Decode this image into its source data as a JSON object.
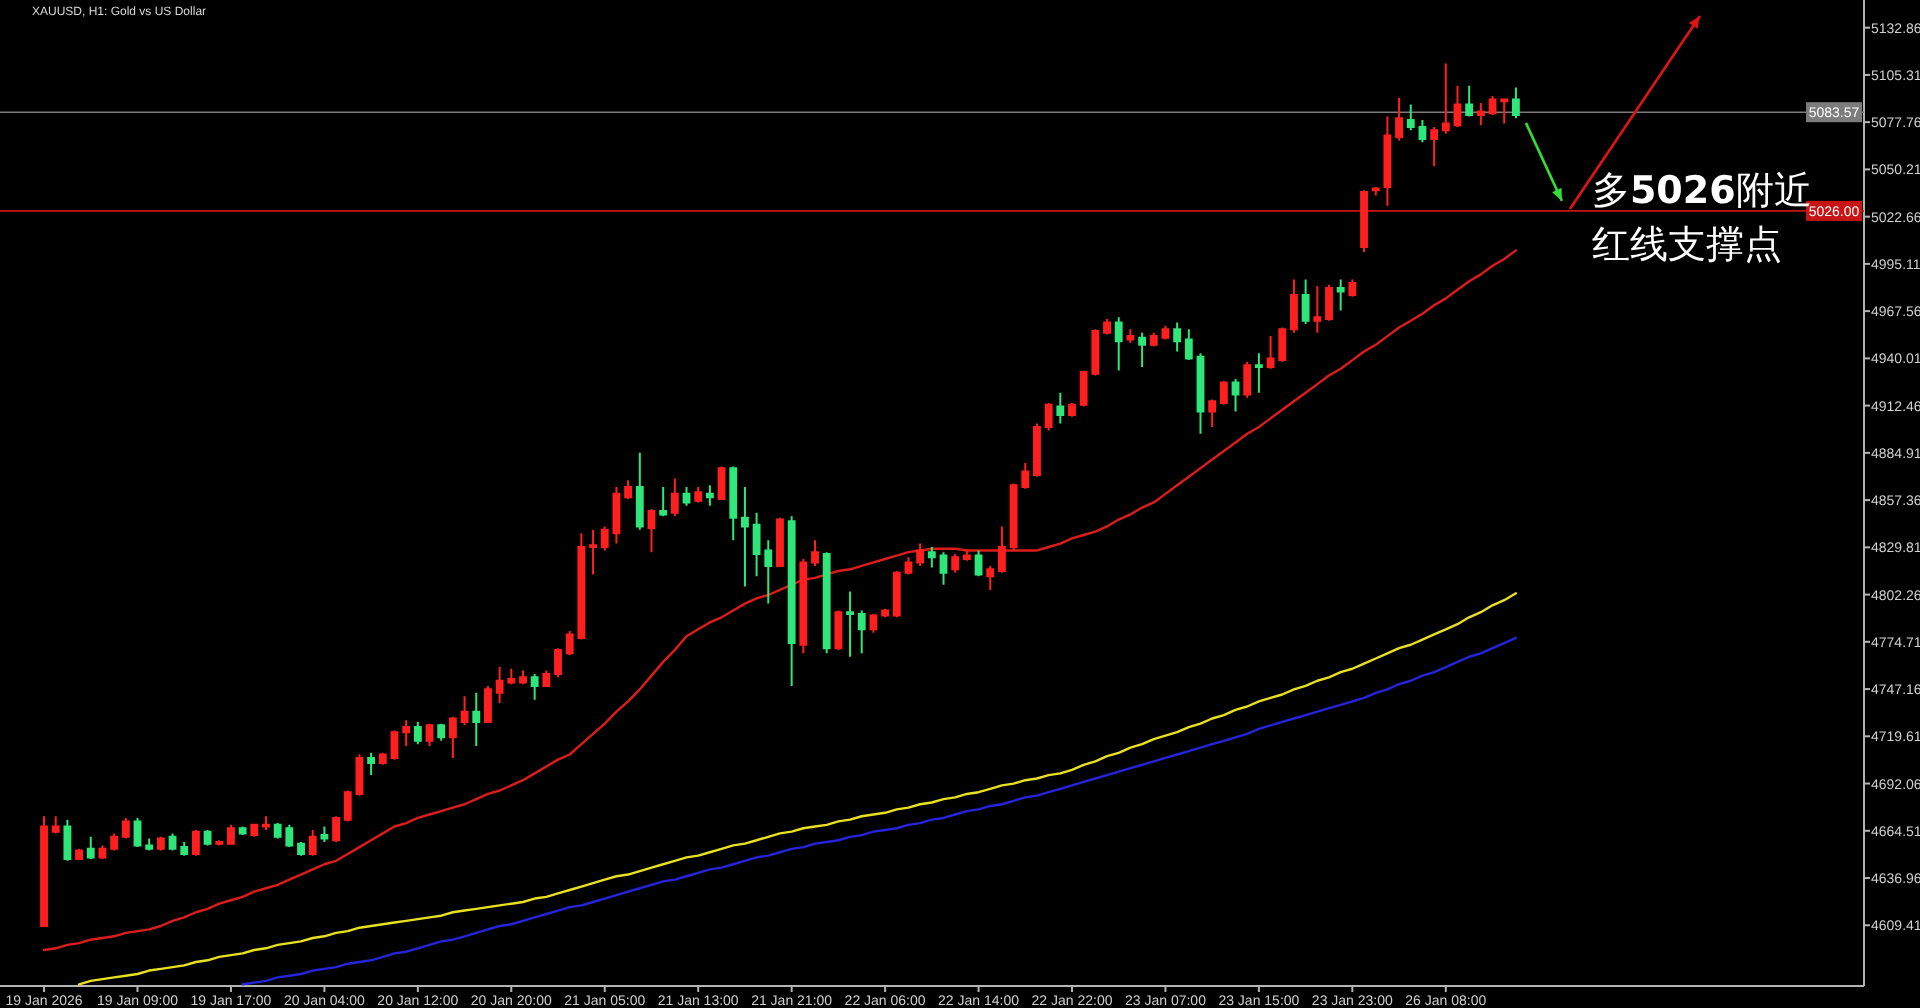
{
  "chart_data": {
    "type": "candlestick",
    "title": "XAUUSD, H1: Gold vs US Dollar",
    "categories": [
      "19 Jan 2026",
      null,
      null,
      null,
      null,
      null,
      null,
      null,
      "19 Jan 09:00",
      null,
      null,
      null,
      null,
      null,
      null,
      null,
      "19 Jan 17:00",
      null,
      null,
      null,
      null,
      null,
      null,
      null,
      "20 Jan 04:00",
      null,
      null,
      null,
      null,
      null,
      null,
      null,
      "20 Jan 12:00",
      null,
      null,
      null,
      null,
      null,
      null,
      null,
      "20 Jan 20:00",
      null,
      null,
      null,
      null,
      null,
      null,
      null,
      "21 Jan 05:00",
      null,
      null,
      null,
      null,
      null,
      null,
      null,
      "21 Jan 13:00",
      null,
      null,
      null,
      null,
      null,
      null,
      null,
      "21 Jan 21:00",
      null,
      null,
      null,
      null,
      null,
      null,
      null,
      "22 Jan 06:00",
      null,
      null,
      null,
      null,
      null,
      null,
      null,
      "22 Jan 14:00",
      null,
      null,
      null,
      null,
      null,
      null,
      null,
      "22 Jan 22:00",
      null,
      null,
      null,
      null,
      null,
      null,
      null,
      "23 Jan 07:00",
      null,
      null,
      null,
      null,
      null,
      null,
      null,
      "23 Jan 15:00",
      null,
      null,
      null,
      null,
      null,
      null,
      null,
      "23 Jan 23:00",
      null,
      null,
      null,
      null,
      null,
      null,
      null,
      "26 Jan 08:00",
      null,
      null,
      null,
      null,
      null,
      null
    ],
    "ohlc": [
      [
        4609,
        4673,
        4609,
        4667
      ],
      [
        4664,
        4673,
        4663,
        4667
      ],
      [
        4667,
        4671,
        4647,
        4648
      ],
      [
        4648,
        4654,
        4648,
        4653
      ],
      [
        4654,
        4661,
        4648,
        4649
      ],
      [
        4649,
        4656,
        4648,
        4654
      ],
      [
        4654,
        4663,
        4653,
        4661
      ],
      [
        4661,
        4672,
        4660,
        4670
      ],
      [
        4670,
        4672,
        4655,
        4656
      ],
      [
        4656,
        4660,
        4653,
        4654
      ],
      [
        4654,
        4661,
        4653,
        4660
      ],
      [
        4661,
        4663,
        4653,
        4654
      ],
      [
        4655,
        4658,
        4650,
        4651
      ],
      [
        4651,
        4665,
        4650,
        4664
      ],
      [
        4664,
        4665,
        4656,
        4657
      ],
      [
        4657,
        4659,
        4656,
        4658
      ],
      [
        4657,
        4668,
        4657,
        4666
      ],
      [
        4666,
        4667,
        4662,
        4663
      ],
      [
        4662,
        4668,
        4661,
        4668
      ],
      [
        4667,
        4673,
        4665,
        4668
      ],
      [
        4668,
        4669,
        4660,
        4661
      ],
      [
        4666,
        4668,
        4655,
        4656
      ],
      [
        4657,
        4658,
        4650,
        4651
      ],
      [
        4651,
        4665,
        4650,
        4661
      ],
      [
        4662,
        4667,
        4658,
        4660
      ],
      [
        4659,
        4673,
        4658,
        4672
      ],
      [
        4671,
        4688,
        4670,
        4687
      ],
      [
        4686,
        4709,
        4685,
        4707
      ],
      [
        4707,
        4710,
        4697,
        4704
      ],
      [
        4704,
        4710,
        4703,
        4709
      ],
      [
        4707,
        4723,
        4706,
        4722
      ],
      [
        4722,
        4729,
        4714,
        4725
      ],
      [
        4725,
        4728,
        4715,
        4717
      ],
      [
        4717,
        4727,
        4714,
        4726
      ],
      [
        4726,
        4727,
        4717,
        4719
      ],
      [
        4719,
        4731,
        4707,
        4730
      ],
      [
        4728,
        4743,
        4726,
        4734
      ],
      [
        4734,
        4745,
        4714,
        4728
      ],
      [
        4728,
        4749,
        4728,
        4747
      ],
      [
        4745,
        4760,
        4739,
        4752
      ],
      [
        4751,
        4759,
        4750,
        4753
      ],
      [
        4751,
        4758,
        4750,
        4754
      ],
      [
        4754,
        4756,
        4741,
        4749
      ],
      [
        4749,
        4758,
        4749,
        4756
      ],
      [
        4756,
        4771,
        4754,
        4770
      ],
      [
        4768,
        4781,
        4767,
        4779
      ],
      [
        4777,
        4838,
        4776,
        4830
      ],
      [
        4830,
        4840,
        4814,
        4831
      ],
      [
        4830,
        4842,
        4828,
        4840
      ],
      [
        4838,
        4865,
        4832,
        4861
      ],
      [
        4859,
        4869,
        4858,
        4865
      ],
      [
        4865,
        4885,
        4840,
        4842
      ],
      [
        4841,
        4852,
        4827,
        4851
      ],
      [
        4851,
        4865,
        4848,
        4849
      ],
      [
        4850,
        4870,
        4848,
        4861
      ],
      [
        4861,
        4865,
        4854,
        4856
      ],
      [
        4857,
        4865,
        4856,
        4862
      ],
      [
        4861,
        4866,
        4854,
        4859
      ],
      [
        4858,
        4877,
        4858,
        4876
      ],
      [
        4876,
        4877,
        4834,
        4847
      ],
      [
        4847,
        4865,
        4807,
        4842
      ],
      [
        4843,
        4850,
        4813,
        4826
      ],
      [
        4828,
        4834,
        4797,
        4819
      ],
      [
        4819,
        4847,
        4819,
        4846
      ],
      [
        4845,
        4848,
        4749,
        4774
      ],
      [
        4773,
        4823,
        4768,
        4821
      ],
      [
        4821,
        4834,
        4819,
        4827
      ],
      [
        4826,
        4827,
        4768,
        4771
      ],
      [
        4771,
        4793,
        4770,
        4792
      ],
      [
        4792,
        4804,
        4766,
        4791
      ],
      [
        4791,
        4793,
        4768,
        4782
      ],
      [
        4782,
        4791,
        4780,
        4790
      ],
      [
        4790,
        4794,
        4789,
        4793
      ],
      [
        4790,
        4816,
        4789,
        4815
      ],
      [
        4815,
        4824,
        4814,
        4821
      ],
      [
        4821,
        4832,
        4819,
        4828
      ],
      [
        4827,
        4830,
        4818,
        4824
      ],
      [
        4825,
        4827,
        4808,
        4815
      ],
      [
        4817,
        4826,
        4815,
        4824
      ],
      [
        4823,
        4828,
        4822,
        4825
      ],
      [
        4825,
        4828,
        4813,
        4814
      ],
      [
        4813,
        4819,
        4805,
        4817
      ],
      [
        4816,
        4842,
        4815,
        4830
      ],
      [
        4830,
        4867,
        4828,
        4866
      ],
      [
        4865,
        4879,
        4864,
        4874
      ],
      [
        4872,
        4902,
        4871,
        4900
      ],
      [
        4900,
        4914,
        4898,
        4913
      ],
      [
        4912,
        4920,
        4902,
        4907
      ],
      [
        4907,
        4914,
        4906,
        4913
      ],
      [
        4913,
        4933,
        4912,
        4932
      ],
      [
        4931,
        4957,
        4930,
        4956
      ],
      [
        4955,
        4963,
        4954,
        4961
      ],
      [
        4961,
        4964,
        4933,
        4950
      ],
      [
        4951,
        4957,
        4949,
        4953
      ],
      [
        4952,
        4955,
        4935,
        4948
      ],
      [
        4948,
        4955,
        4947,
        4953
      ],
      [
        4952,
        4959,
        4951,
        4957
      ],
      [
        4957,
        4961,
        4944,
        4950
      ],
      [
        4951,
        4957,
        4939,
        4940
      ],
      [
        4941,
        4943,
        4896,
        4909
      ],
      [
        4909,
        4916,
        4900,
        4915
      ],
      [
        4914,
        4927,
        4913,
        4926
      ],
      [
        4926,
        4928,
        4909,
        4919
      ],
      [
        4919,
        4938,
        4917,
        4936
      ],
      [
        4936,
        4943,
        4920,
        4935
      ],
      [
        4935,
        4953,
        4934,
        4940
      ],
      [
        4939,
        4958,
        4938,
        4957
      ],
      [
        4957,
        4986,
        4955,
        4977
      ],
      [
        4977,
        4986,
        4960,
        4962
      ],
      [
        4962,
        4982,
        4955,
        4964
      ],
      [
        4963,
        4983,
        4962,
        4981
      ],
      [
        4981,
        4986,
        4968,
        4979
      ],
      [
        4977,
        4986,
        4976,
        4984
      ],
      [
        5005,
        5038,
        5002,
        5037
      ],
      [
        5038,
        5040,
        5035,
        5039
      ],
      [
        5040,
        5081,
        5029,
        5070
      ],
      [
        5069,
        5092,
        5067,
        5080
      ],
      [
        5079,
        5088,
        5073,
        5075
      ],
      [
        5075,
        5079,
        5066,
        5068
      ],
      [
        5068,
        5075,
        5052,
        5073
      ],
      [
        5073,
        5112,
        5071,
        5077
      ],
      [
        5076,
        5099,
        5075,
        5088
      ],
      [
        5088,
        5099,
        5081,
        5082
      ],
      [
        5082,
        5089,
        5076,
        5084
      ],
      [
        5083,
        5093,
        5082,
        5091
      ],
      [
        5090,
        5091,
        5077,
        5091
      ],
      [
        5091,
        5098,
        5080,
        5082
      ]
    ],
    "colors": [
      "#ff1f1f",
      "#ff1f1f",
      "#2ee67a",
      "#ff1f1f",
      "#2ee67a",
      "#ff1f1f",
      "#ff1f1f",
      "#ff1f1f",
      "#2ee67a",
      "#2ee67a",
      "#ff1f1f",
      "#2ee67a",
      "#2ee67a",
      "#ff1f1f",
      "#2ee67a",
      "#ff1f1f",
      "#ff1f1f",
      "#2ee67a",
      "#ff1f1f",
      "#ff1f1f",
      "#2ee67a",
      "#2ee67a",
      "#2ee67a",
      "#ff1f1f",
      "#2ee67a",
      "#ff1f1f",
      "#ff1f1f",
      "#ff1f1f",
      "#2ee67a",
      "#ff1f1f",
      "#ff1f1f",
      "#ff1f1f",
      "#2ee67a",
      "#ff1f1f",
      "#2ee67a",
      "#ff1f1f",
      "#ff1f1f",
      "#2ee67a",
      "#ff1f1f",
      "#ff1f1f",
      "#ff1f1f",
      "#ff1f1f",
      "#2ee67a",
      "#ff1f1f",
      "#ff1f1f",
      "#ff1f1f",
      "#ff1f1f",
      "#ff1f1f",
      "#ff1f1f",
      "#ff1f1f",
      "#ff1f1f",
      "#2ee67a",
      "#ff1f1f",
      "#2ee67a",
      "#ff1f1f",
      "#2ee67a",
      "#ff1f1f",
      "#2ee67a",
      "#ff1f1f",
      "#2ee67a",
      "#2ee67a",
      "#2ee67a",
      "#2ee67a",
      "#ff1f1f",
      "#2ee67a",
      "#ff1f1f",
      "#ff1f1f",
      "#2ee67a",
      "#ff1f1f",
      "#2ee67a",
      "#2ee67a",
      "#ff1f1f",
      "#ff1f1f",
      "#ff1f1f",
      "#ff1f1f",
      "#ff1f1f",
      "#2ee67a",
      "#2ee67a",
      "#ff1f1f",
      "#ff1f1f",
      "#2ee67a",
      "#ff1f1f",
      "#ff1f1f",
      "#ff1f1f",
      "#ff1f1f",
      "#ff1f1f",
      "#ff1f1f",
      "#2ee67a",
      "#ff1f1f",
      "#ff1f1f",
      "#ff1f1f",
      "#ff1f1f",
      "#2ee67a",
      "#ff1f1f",
      "#2ee67a",
      "#ff1f1f",
      "#ff1f1f",
      "#2ee67a",
      "#2ee67a",
      "#2ee67a",
      "#ff1f1f",
      "#ff1f1f",
      "#2ee67a",
      "#ff1f1f",
      "#2ee67a",
      "#ff1f1f",
      "#ff1f1f",
      "#ff1f1f",
      "#2ee67a",
      "#ff1f1f",
      "#ff1f1f",
      "#2ee67a",
      "#ff1f1f",
      "#ff1f1f",
      "#ff1f1f",
      "#ff1f1f",
      "#ff1f1f",
      "#2ee67a",
      "#2ee67a",
      "#ff1f1f",
      "#ff1f1f",
      "#ff1f1f",
      "#2ee67a",
      "#ff1f1f",
      "#ff1f1f",
      "#ff1f1f",
      "#2ee67a"
    ],
    "series": [
      {
        "type": "line",
        "color": "#dd1c1c",
        "values": [
          4595,
          4596,
          4598,
          4599,
          4601,
          4602,
          4603,
          4605,
          4606,
          4607,
          4609,
          4612,
          4614,
          4617,
          4619,
          4622,
          4624,
          4626,
          4629,
          4631,
          4633,
          4636,
          4639,
          4642,
          4645,
          4647,
          4651,
          4655,
          4659,
          4663,
          4667,
          4669,
          4672,
          4674,
          4676,
          4678,
          4680,
          4683,
          4686,
          4688,
          4691,
          4694,
          4698,
          4702,
          4706,
          4709,
          4715,
          4721,
          4727,
          4734,
          4740,
          4747,
          4755,
          4763,
          4770,
          4778,
          4782,
          4786,
          4789,
          4793,
          4797,
          4800,
          4802,
          4805,
          4808,
          4811,
          4812,
          4814,
          4816,
          4817,
          4819,
          4821,
          4823,
          4825,
          4827,
          4828,
          4829,
          4829,
          4829,
          4828,
          4828,
          4828,
          4828,
          4828,
          4828,
          4828,
          4830,
          4832,
          4835,
          4837,
          4839,
          4842,
          4846,
          4849,
          4853,
          4856,
          4861,
          4866,
          4871,
          4876,
          4881,
          4886,
          4891,
          4896,
          4900,
          4905,
          4910,
          4915,
          4920,
          4925,
          4930,
          4934,
          4939,
          4944,
          4948,
          4953,
          4958,
          4962,
          4966,
          4971,
          4975,
          4980,
          4985,
          4989,
          4994,
          4998,
          5003
        ]
      },
      {
        "type": "line",
        "color": "#e8e020",
        "values": [
          null,
          null,
          null,
          4575,
          4577,
          4578,
          4579,
          4580,
          4581,
          4583,
          4584,
          4585,
          4586,
          4588,
          4589,
          4591,
          4592,
          4593,
          4595,
          4596,
          4598,
          4599,
          4600,
          4602,
          4603,
          4605,
          4606,
          4608,
          4609,
          4610,
          4611,
          4612,
          4613,
          4614,
          4615,
          4617,
          4618,
          4619,
          4620,
          4621,
          4622,
          4623,
          4625,
          4626,
          4628,
          4630,
          4632,
          4634,
          4636,
          4638,
          4639,
          4641,
          4643,
          4645,
          4647,
          4649,
          4650,
          4652,
          4654,
          4656,
          4657,
          4659,
          4661,
          4663,
          4664,
          4666,
          4667,
          4668,
          4670,
          4671,
          4673,
          4674,
          4675,
          4677,
          4678,
          4680,
          4681,
          4683,
          4684,
          4686,
          4687,
          4689,
          4691,
          4692,
          4694,
          4695,
          4697,
          4698,
          4700,
          4703,
          4705,
          4708,
          4710,
          4713,
          4715,
          4718,
          4720,
          4722,
          4725,
          4727,
          4730,
          4732,
          4735,
          4737,
          4740,
          4742,
          4744,
          4747,
          4749,
          4752,
          4754,
          4757,
          4759,
          4762,
          4765,
          4768,
          4771,
          4773,
          4776,
          4779,
          4782,
          4785,
          4789,
          4792,
          4796,
          4799,
          4803
        ]
      },
      {
        "type": "line",
        "color": "#2424dc",
        "values": [
          null,
          null,
          null,
          null,
          null,
          null,
          null,
          null,
          null,
          null,
          null,
          null,
          null,
          null,
          null,
          null,
          null,
          4575,
          4576,
          4577,
          4579,
          4580,
          4581,
          4583,
          4584,
          4585,
          4587,
          4588,
          4589,
          4591,
          4593,
          4594,
          4596,
          4598,
          4600,
          4601,
          4603,
          4605,
          4607,
          4609,
          4610,
          4612,
          4614,
          4616,
          4618,
          4620,
          4621,
          4623,
          4625,
          4627,
          4629,
          4631,
          4633,
          4635,
          4636,
          4638,
          4640,
          4642,
          4643,
          4645,
          4647,
          4649,
          4650,
          4652,
          4654,
          4655,
          4657,
          4658,
          4659,
          4661,
          4662,
          4664,
          4665,
          4666,
          4668,
          4669,
          4671,
          4672,
          4674,
          4676,
          4677,
          4679,
          4680,
          4682,
          4684,
          4685,
          4687,
          4689,
          4691,
          4693,
          4695,
          4697,
          4699,
          4701,
          4703,
          4705,
          4707,
          4709,
          4711,
          4713,
          4715,
          4717,
          4719,
          4721,
          4724,
          4726,
          4728,
          4730,
          4732,
          4734,
          4736,
          4738,
          4740,
          4742,
          4745,
          4747,
          4750,
          4752,
          4755,
          4757,
          4760,
          4763,
          4766,
          4768,
          4771,
          4774,
          4777
        ]
      }
    ],
    "ylim": [
      4574,
      5149
    ],
    "yticks": [
      4609.41,
      4636.96,
      4664.51,
      4692.06,
      4719.61,
      4747.16,
      4774.71,
      4802.26,
      4829.81,
      4857.36,
      4884.91,
      4912.46,
      4940.01,
      4967.56,
      4995.11,
      5022.66,
      5050.21,
      5077.76,
      5105.31,
      5132.86
    ],
    "ref_lines": [
      {
        "axis": "y",
        "value": 5083.57,
        "label": "5083.57",
        "color": "#7c7c7c"
      },
      {
        "axis": "y",
        "value": 5026,
        "label": "5026.00",
        "color": "#c81414"
      }
    ],
    "annotations": [
      {
        "text": "多**5026**附近",
        "y": 5026
      },
      {
        "text": "红线支撑点",
        "y": 5026
      }
    ]
  }
}
